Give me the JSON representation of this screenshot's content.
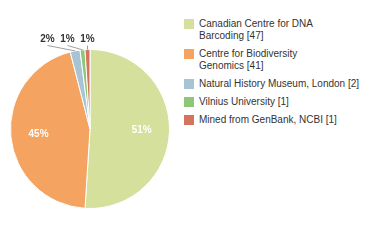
{
  "chart_data": {
    "type": "pie",
    "categories": [
      "Canadian Centre for DNA\nBarcoding [47]",
      "Centre for Biodiversity\nGenomics [41]",
      "Natural History Museum, London [2]",
      "Vilnius University [1]",
      "Mined from GenBank, NCBI [1]"
    ],
    "values": [
      51,
      45,
      2,
      1,
      1
    ],
    "value_labels": [
      "51%",
      "45%",
      "2%",
      "1%",
      "1%"
    ],
    "colors": [
      "#d4e09b",
      "#f4a460",
      "#a8c4d4",
      "#8cc878",
      "#d4735e"
    ],
    "data_labels": true,
    "legend": "right"
  }
}
